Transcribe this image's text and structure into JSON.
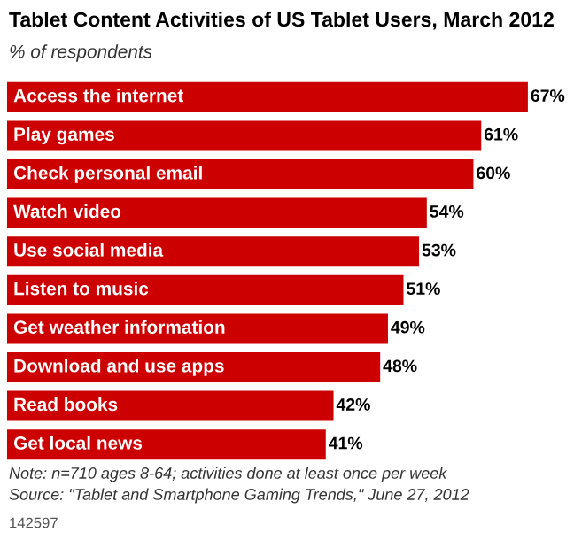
{
  "chart_data": {
    "type": "bar",
    "orientation": "horizontal",
    "title": "Tablet Content Activities of US Tablet Users, March 2012",
    "subtitle": "% of respondents",
    "categories": [
      "Access the internet",
      "Play games",
      "Check personal email",
      "Watch video",
      "Use social media",
      "Listen to music",
      "Get weather information",
      "Download and use apps",
      "Read books",
      "Get local news"
    ],
    "values": [
      67,
      61,
      60,
      54,
      53,
      51,
      49,
      48,
      42,
      41
    ],
    "value_labels": [
      "67%",
      "61%",
      "60%",
      "54%",
      "53%",
      "51%",
      "49%",
      "48%",
      "42%",
      "41%"
    ],
    "color": "#cc0000",
    "annotations": [
      "Note: n=710 ages 8-64; activities done at least once per week",
      "Source: \"Tablet and Smartphone Gaming Trends,\" June 27, 2012",
      "142597"
    ]
  }
}
